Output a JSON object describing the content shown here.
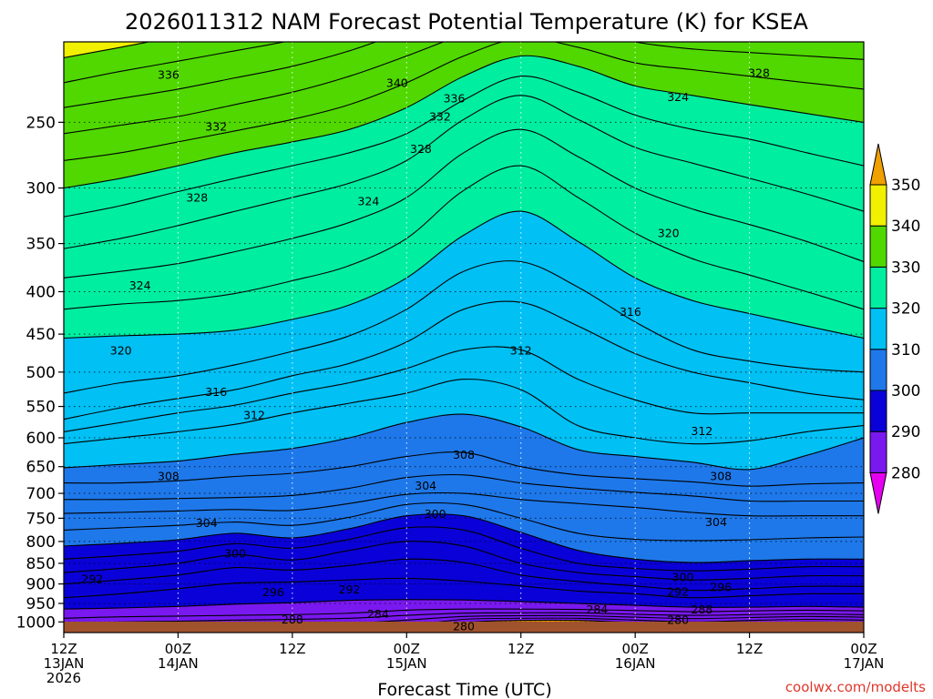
{
  "title": "2026011312 NAM Forecast Potential Temperature (K) for KSEA",
  "credit": "coolwx.com/modelts",
  "chart_data": {
    "type": "heatmap",
    "title": "2026011312 NAM Forecast Potential Temperature (K) for KSEA",
    "xlabel": "Forecast Time (UTC)",
    "ylabel": "",
    "y_scale": "log",
    "y_reversed": true,
    "xlim_hours": [
      0,
      84
    ],
    "ylim_hPa": [
      1030,
      200
    ],
    "x_ticks": [
      {
        "hour": 0,
        "l1": "12Z",
        "l2": "13JAN",
        "l3": "2026"
      },
      {
        "hour": 12,
        "l1": "00Z",
        "l2": "14JAN",
        "l3": ""
      },
      {
        "hour": 24,
        "l1": "12Z",
        "l2": "",
        "l3": ""
      },
      {
        "hour": 36,
        "l1": "00Z",
        "l2": "15JAN",
        "l3": ""
      },
      {
        "hour": 48,
        "l1": "12Z",
        "l2": "",
        "l3": ""
      },
      {
        "hour": 60,
        "l1": "00Z",
        "l2": "16JAN",
        "l3": ""
      },
      {
        "hour": 72,
        "l1": "12Z",
        "l2": "",
        "l3": ""
      },
      {
        "hour": 84,
        "l1": "00Z",
        "l2": "17JAN",
        "l3": ""
      }
    ],
    "y_ticks": [
      "250",
      "300",
      "350",
      "400",
      "450",
      "500",
      "550",
      "600",
      "650",
      "700",
      "750",
      "800",
      "850",
      "900",
      "950",
      "1000"
    ],
    "colorbar": {
      "labels": [
        "280",
        "290",
        "300",
        "310",
        "320",
        "330",
        "340",
        "350"
      ],
      "bins": [
        {
          "min": 270,
          "max": 280,
          "color": "#e600f0"
        },
        {
          "min": 280,
          "max": 290,
          "color": "#7a18f0"
        },
        {
          "min": 290,
          "max": 300,
          "color": "#0a00d8"
        },
        {
          "min": 300,
          "max": 310,
          "color": "#1e78ea"
        },
        {
          "min": 310,
          "max": 320,
          "color": "#00c0f4"
        },
        {
          "min": 320,
          "max": 330,
          "color": "#00eea0"
        },
        {
          "min": 330,
          "max": 340,
          "color": "#50d800"
        },
        {
          "min": 340,
          "max": 350,
          "color": "#f0f000"
        },
        {
          "min": 350,
          "max": 360,
          "color": "#f0a000"
        }
      ]
    },
    "ground_color": "#a0522d",
    "contour_interval_K": 2,
    "x_hours": [
      0,
      6,
      12,
      18,
      24,
      30,
      36,
      42,
      48,
      54,
      60,
      66,
      72,
      78,
      84
    ],
    "contours": [
      {
        "k": 280,
        "p": [
          1032,
          1032,
          1032,
          1032,
          1032,
          1032,
          1030,
          1002,
          996,
          996,
          1002,
          1008,
          1004,
          1000,
          1002
        ]
      },
      {
        "k": 282,
        "p": [
          1028,
          1025,
          1023,
          1021,
          1019,
          1018,
          1010,
          993,
          990,
          990,
          995,
          1000,
          996,
          993,
          995
        ]
      },
      {
        "k": 284,
        "p": [
          1018,
          1014,
          1011,
          1008,
          1006,
          1004,
          995,
          985,
          983,
          983,
          987,
          991,
          988,
          985,
          987
        ]
      },
      {
        "k": 286,
        "p": [
          1005,
          1000,
          998,
          995,
          993,
          990,
          982,
          976,
          975,
          975,
          979,
          982,
          980,
          978,
          980
        ]
      },
      {
        "k": 288,
        "p": [
          990,
          986,
          984,
          982,
          980,
          976,
          968,
          965,
          965,
          966,
          969,
          972,
          970,
          968,
          970
        ]
      },
      {
        "k": 290,
        "p": [
          965,
          962,
          958,
          952,
          948,
          942,
          940,
          941,
          945,
          950,
          955,
          960,
          960,
          958,
          960
        ]
      },
      {
        "k": 292,
        "p": [
          935,
          925,
          912,
          898,
          895,
          890,
          886,
          893,
          905,
          918,
          925,
          935,
          930,
          925,
          925
        ]
      },
      {
        "k": 294,
        "p": [
          900,
          890,
          878,
          860,
          866,
          855,
          840,
          848,
          878,
          894,
          905,
          916,
          912,
          906,
          906
        ]
      },
      {
        "k": 296,
        "p": [
          872,
          862,
          850,
          830,
          842,
          820,
          800,
          810,
          850,
          872,
          882,
          890,
          886,
          880,
          880
        ]
      },
      {
        "k": 298,
        "p": [
          840,
          832,
          822,
          805,
          815,
          795,
          770,
          775,
          815,
          850,
          862,
          868,
          864,
          858,
          858
        ]
      },
      {
        "k": 300,
        "p": [
          810,
          804,
          796,
          782,
          792,
          772,
          745,
          745,
          780,
          820,
          840,
          848,
          844,
          840,
          840
        ]
      },
      {
        "k": 302,
        "p": [
          775,
          770,
          765,
          758,
          765,
          748,
          722,
          722,
          750,
          782,
          795,
          798,
          796,
          792,
          790
        ]
      },
      {
        "k": 304,
        "p": [
          740,
          738,
          735,
          732,
          734,
          720,
          702,
          700,
          712,
          720,
          728,
          738,
          745,
          745,
          745
        ]
      },
      {
        "k": 306,
        "p": [
          712,
          712,
          710,
          708,
          704,
          690,
          670,
          665,
          680,
          690,
          698,
          705,
          715,
          715,
          715
        ]
      },
      {
        "k": 308,
        "p": [
          680,
          680,
          676,
          668,
          662,
          650,
          632,
          625,
          650,
          665,
          672,
          678,
          686,
          682,
          680
        ]
      },
      {
        "k": 310,
        "p": [
          652,
          646,
          640,
          628,
          618,
          600,
          575,
          562,
          582,
          620,
          632,
          642,
          655,
          630,
          600
        ]
      },
      {
        "k": 312,
        "p": [
          610,
          600,
          590,
          578,
          560,
          545,
          530,
          510,
          525,
          580,
          600,
          610,
          605,
          590,
          580
        ]
      },
      {
        "k": 314,
        "p": [
          590,
          575,
          560,
          548,
          530,
          515,
          495,
          470,
          470,
          510,
          540,
          560,
          560,
          560,
          560
        ]
      },
      {
        "k": 316,
        "p": [
          570,
          552,
          538,
          525,
          505,
          488,
          460,
          420,
          412,
          440,
          475,
          500,
          515,
          530,
          540
        ]
      },
      {
        "k": 318,
        "p": [
          530,
          515,
          505,
          490,
          472,
          452,
          420,
          378,
          368,
          395,
          435,
          470,
          485,
          495,
          500
        ]
      },
      {
        "k": 320,
        "p": [
          455,
          452,
          450,
          445,
          432,
          415,
          385,
          342,
          320,
          348,
          385,
          410,
          425,
          440,
          455
        ]
      },
      {
        "k": 322,
        "p": [
          420,
          414,
          410,
          402,
          388,
          372,
          345,
          302,
          282,
          308,
          340,
          365,
          382,
          400,
          420
        ]
      },
      {
        "k": 324,
        "p": [
          385,
          378,
          370,
          358,
          345,
          330,
          308,
          272,
          255,
          275,
          300,
          318,
          332,
          348,
          368
        ]
      },
      {
        "k": 326,
        "p": [
          355,
          345,
          333,
          320,
          308,
          296,
          278,
          248,
          232,
          248,
          268,
          280,
          292,
          305,
          320
        ]
      },
      {
        "k": 328,
        "p": [
          325,
          315,
          303,
          292,
          282,
          272,
          258,
          235,
          220,
          230,
          245,
          255,
          262,
          272,
          282
        ]
      },
      {
        "k": 330,
        "p": [
          300,
          292,
          282,
          272,
          264,
          255,
          240,
          220,
          208,
          214,
          226,
          232,
          238,
          244,
          250
        ]
      },
      {
        "k": 332,
        "p": [
          278,
          272,
          264,
          256,
          248,
          238,
          224,
          208,
          198,
          203,
          212,
          216,
          220,
          224,
          228
        ]
      },
      {
        "k": 334,
        "p": [
          258,
          252,
          246,
          238,
          230,
          220,
          208,
          196,
          188,
          192,
          200,
          204,
          206,
          208,
          210
        ]
      },
      {
        "k": 336,
        "p": [
          240,
          234,
          228,
          221,
          214,
          205,
          194,
          184,
          178,
          181,
          188,
          192,
          193,
          195,
          196
        ]
      },
      {
        "k": 338,
        "p": [
          224,
          217,
          211,
          205,
          199,
          191,
          181,
          173,
          168,
          170,
          176,
          180,
          181,
          182,
          183
        ]
      },
      {
        "k": 340,
        "p": [
          209,
          203,
          197,
          192,
          186,
          179,
          170,
          163,
          158,
          160,
          166,
          170,
          171,
          172,
          173
        ]
      },
      {
        "k": 342,
        "p": [
          196,
          191,
          186,
          181,
          175,
          169,
          161,
          154,
          150,
          152,
          157,
          161,
          162,
          163,
          164
        ]
      },
      {
        "k": 344,
        "p": [
          185,
          180,
          175,
          171,
          166,
          160,
          153,
          147,
          143,
          145,
          149,
          153,
          154,
          155,
          156
        ]
      }
    ],
    "contour_labels": [
      {
        "text": "336",
        "hour": 11.0,
        "p": 219
      },
      {
        "text": "340",
        "hour": 35.0,
        "p": 224
      },
      {
        "text": "336",
        "hour": 41.0,
        "p": 234
      },
      {
        "text": "332",
        "hour": 16.0,
        "p": 253
      },
      {
        "text": "332",
        "hour": 39.5,
        "p": 246
      },
      {
        "text": "328",
        "hour": 37.5,
        "p": 269
      },
      {
        "text": "328",
        "hour": 73.0,
        "p": 218
      },
      {
        "text": "324",
        "hour": 64.5,
        "p": 233
      },
      {
        "text": "328",
        "hour": 14.0,
        "p": 308
      },
      {
        "text": "324",
        "hour": 32.0,
        "p": 311
      },
      {
        "text": "320",
        "hour": 63.5,
        "p": 340
      },
      {
        "text": "324",
        "hour": 8.0,
        "p": 393
      },
      {
        "text": "316",
        "hour": 59.5,
        "p": 423
      },
      {
        "text": "320",
        "hour": 6.0,
        "p": 471
      },
      {
        "text": "312",
        "hour": 48.0,
        "p": 471
      },
      {
        "text": "316",
        "hour": 16.0,
        "p": 528
      },
      {
        "text": "312",
        "hour": 20.0,
        "p": 563
      },
      {
        "text": "312",
        "hour": 67.0,
        "p": 589
      },
      {
        "text": "308",
        "hour": 42.0,
        "p": 629
      },
      {
        "text": "308",
        "hour": 11.0,
        "p": 667
      },
      {
        "text": "308",
        "hour": 69.0,
        "p": 667
      },
      {
        "text": "304",
        "hour": 38.0,
        "p": 685
      },
      {
        "text": "304",
        "hour": 15.0,
        "p": 760
      },
      {
        "text": "304",
        "hour": 68.5,
        "p": 758
      },
      {
        "text": "300",
        "hour": 39.0,
        "p": 741
      },
      {
        "text": "300",
        "hour": 18.0,
        "p": 827
      },
      {
        "text": "300",
        "hour": 65.0,
        "p": 883
      },
      {
        "text": "296",
        "hour": 69.0,
        "p": 908
      },
      {
        "text": "292",
        "hour": 3.0,
        "p": 887
      },
      {
        "text": "292",
        "hour": 30.0,
        "p": 913
      },
      {
        "text": "292",
        "hour": 64.5,
        "p": 919
      },
      {
        "text": "296",
        "hour": 22.0,
        "p": 920
      },
      {
        "text": "284",
        "hour": 33.0,
        "p": 978
      },
      {
        "text": "284",
        "hour": 56.0,
        "p": 966
      },
      {
        "text": "288",
        "hour": 24.0,
        "p": 993
      },
      {
        "text": "288",
        "hour": 67.0,
        "p": 966
      },
      {
        "text": "280",
        "hour": 42.0,
        "p": 1012
      },
      {
        "text": "280",
        "hour": 64.5,
        "p": 994
      }
    ]
  }
}
